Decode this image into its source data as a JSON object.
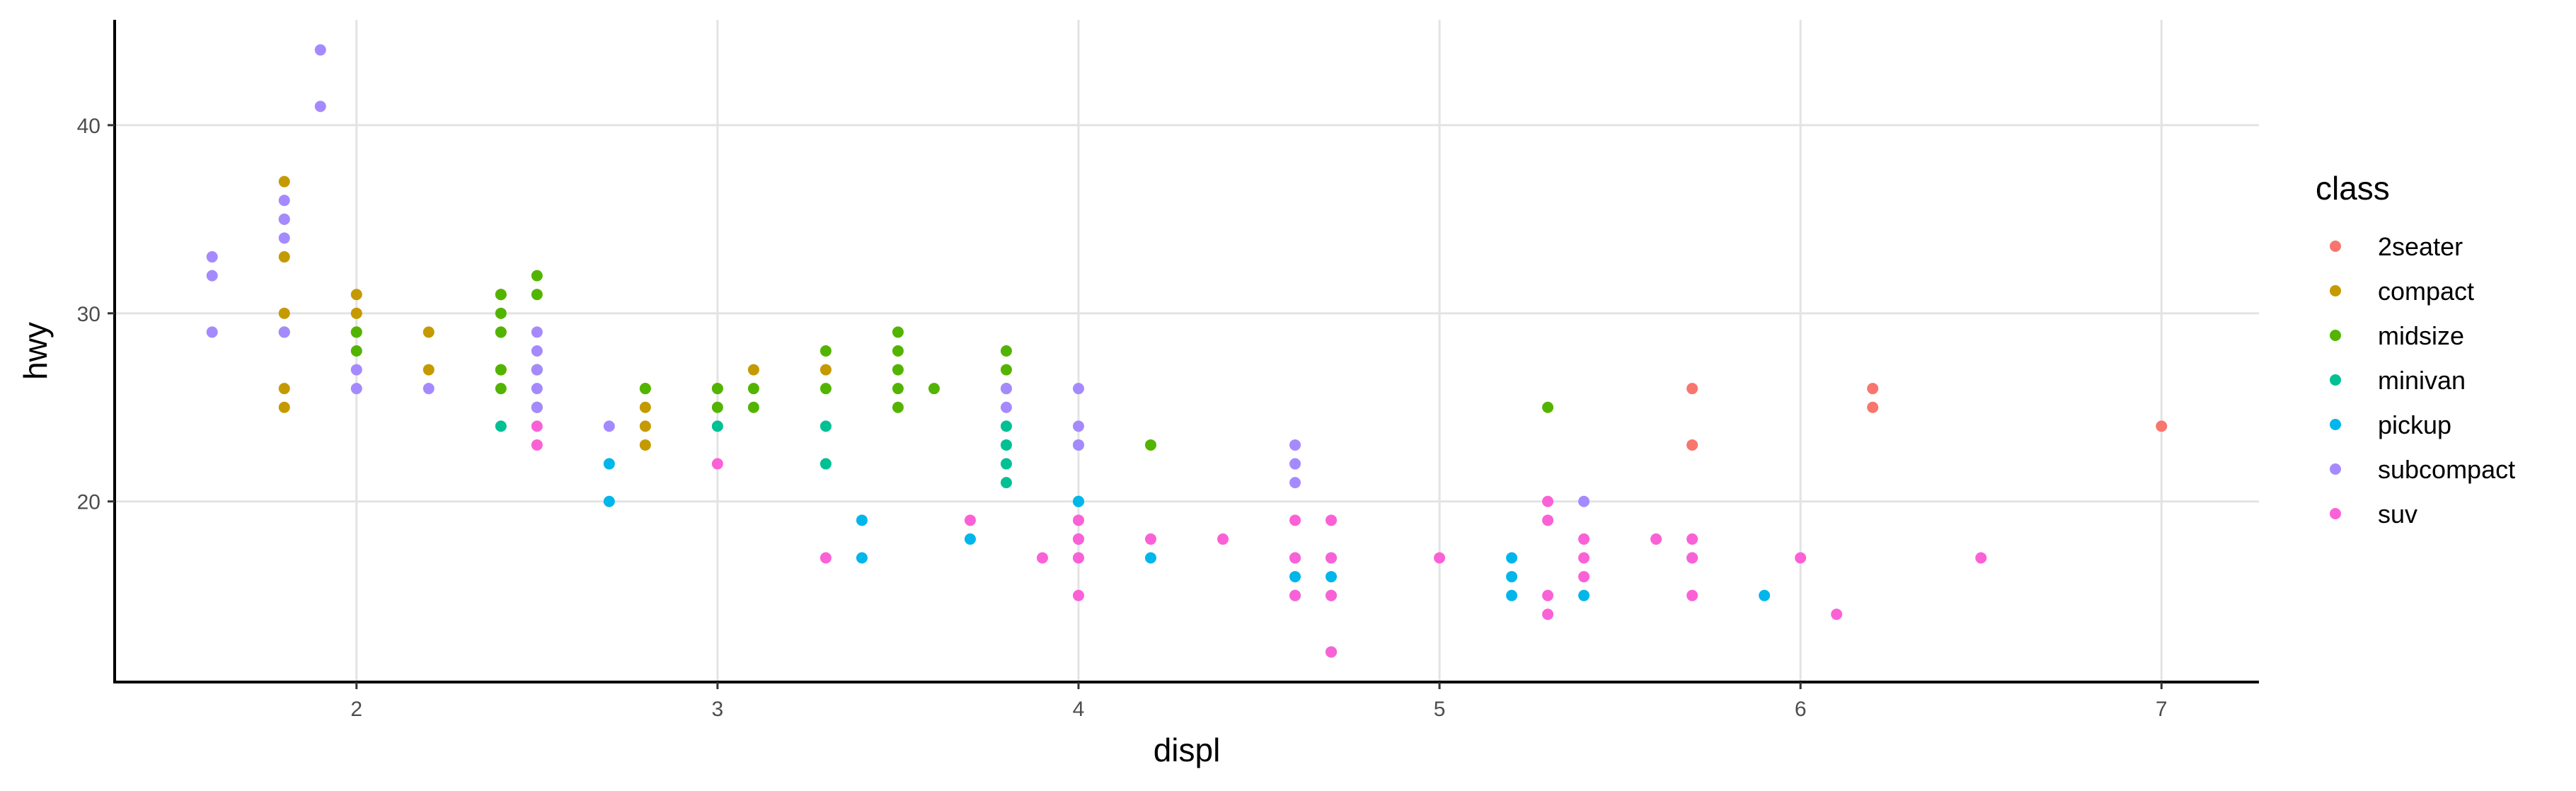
{
  "chart_data": {
    "type": "scatter",
    "xlabel": "displ",
    "ylabel": "hwy",
    "xlim": [
      1.33,
      7.27
    ],
    "ylim": [
      10.4,
      45.6
    ],
    "xticks": [
      2,
      3,
      4,
      5,
      6,
      7
    ],
    "yticks": [
      20,
      30,
      40
    ],
    "grid": true,
    "legend": {
      "title": "class",
      "position": "right"
    },
    "series": [
      {
        "name": "2seater",
        "color": "#F8766D",
        "points": [
          [
            5.7,
            26
          ],
          [
            5.7,
            23
          ],
          [
            6.2,
            26
          ],
          [
            6.2,
            25
          ],
          [
            7.0,
            24
          ]
        ]
      },
      {
        "name": "compact",
        "color": "#C49A00",
        "points": [
          [
            1.8,
            37
          ],
          [
            1.8,
            35
          ],
          [
            1.8,
            33
          ],
          [
            1.8,
            30
          ],
          [
            1.8,
            26
          ],
          [
            1.8,
            25
          ],
          [
            2.0,
            31
          ],
          [
            2.0,
            30
          ],
          [
            2.0,
            29
          ],
          [
            2.2,
            29
          ],
          [
            2.2,
            27
          ],
          [
            2.4,
            31
          ],
          [
            2.4,
            29
          ],
          [
            2.4,
            27
          ],
          [
            2.5,
            27
          ],
          [
            2.5,
            25
          ],
          [
            2.8,
            26
          ],
          [
            2.8,
            25
          ],
          [
            2.8,
            24
          ],
          [
            2.8,
            23
          ],
          [
            3.0,
            26
          ],
          [
            3.1,
            27
          ],
          [
            3.3,
            27
          ]
        ]
      },
      {
        "name": "midsize",
        "color": "#53B400",
        "points": [
          [
            1.8,
            29
          ],
          [
            2.0,
            29
          ],
          [
            2.0,
            28
          ],
          [
            2.4,
            31
          ],
          [
            2.4,
            30
          ],
          [
            2.4,
            29
          ],
          [
            2.4,
            27
          ],
          [
            2.4,
            26
          ],
          [
            2.5,
            32
          ],
          [
            2.5,
            31
          ],
          [
            2.5,
            27
          ],
          [
            2.5,
            25
          ],
          [
            2.8,
            26
          ],
          [
            3.0,
            26
          ],
          [
            3.0,
            25
          ],
          [
            3.1,
            26
          ],
          [
            3.1,
            25
          ],
          [
            3.3,
            28
          ],
          [
            3.3,
            26
          ],
          [
            3.5,
            29
          ],
          [
            3.5,
            28
          ],
          [
            3.5,
            27
          ],
          [
            3.5,
            26
          ],
          [
            3.5,
            25
          ],
          [
            3.6,
            26
          ],
          [
            3.8,
            28
          ],
          [
            3.8,
            27
          ],
          [
            3.8,
            26
          ],
          [
            4.2,
            23
          ],
          [
            5.3,
            25
          ]
        ]
      },
      {
        "name": "minivan",
        "color": "#00C094",
        "points": [
          [
            2.4,
            24
          ],
          [
            3.0,
            24
          ],
          [
            3.3,
            24
          ],
          [
            3.3,
            22
          ],
          [
            3.8,
            24
          ],
          [
            3.8,
            23
          ],
          [
            3.8,
            22
          ],
          [
            3.8,
            21
          ],
          [
            4.0,
            23
          ],
          [
            4.0,
            20
          ]
        ]
      },
      {
        "name": "pickup",
        "color": "#00B6EB",
        "points": [
          [
            2.7,
            22
          ],
          [
            2.7,
            20
          ],
          [
            3.4,
            19
          ],
          [
            3.4,
            17
          ],
          [
            3.7,
            18
          ],
          [
            4.0,
            20
          ],
          [
            4.0,
            18
          ],
          [
            4.0,
            17
          ],
          [
            4.2,
            17
          ],
          [
            4.6,
            17
          ],
          [
            4.6,
            16
          ],
          [
            4.6,
            15
          ],
          [
            4.7,
            17
          ],
          [
            4.7,
            16
          ],
          [
            4.7,
            15
          ],
          [
            4.7,
            12
          ],
          [
            5.2,
            17
          ],
          [
            5.2,
            16
          ],
          [
            5.2,
            15
          ],
          [
            5.4,
            15
          ],
          [
            5.7,
            17
          ],
          [
            5.9,
            15
          ]
        ]
      },
      {
        "name": "subcompact",
        "color": "#A58AFF",
        "points": [
          [
            1.6,
            33
          ],
          [
            1.6,
            32
          ],
          [
            1.6,
            29
          ],
          [
            1.8,
            36
          ],
          [
            1.8,
            35
          ],
          [
            1.8,
            34
          ],
          [
            1.8,
            29
          ],
          [
            1.9,
            44
          ],
          [
            1.9,
            41
          ],
          [
            2.0,
            27
          ],
          [
            2.0,
            26
          ],
          [
            2.2,
            26
          ],
          [
            2.5,
            29
          ],
          [
            2.5,
            28
          ],
          [
            2.5,
            27
          ],
          [
            2.5,
            26
          ],
          [
            2.5,
            25
          ],
          [
            2.7,
            24
          ],
          [
            3.8,
            26
          ],
          [
            3.8,
            25
          ],
          [
            4.0,
            26
          ],
          [
            4.0,
            24
          ],
          [
            4.0,
            23
          ],
          [
            4.6,
            23
          ],
          [
            4.6,
            22
          ],
          [
            4.6,
            21
          ],
          [
            5.4,
            20
          ]
        ]
      },
      {
        "name": "suv",
        "color": "#FB61D7",
        "points": [
          [
            2.5,
            24
          ],
          [
            2.5,
            23
          ],
          [
            3.0,
            22
          ],
          [
            3.3,
            17
          ],
          [
            3.7,
            19
          ],
          [
            3.9,
            17
          ],
          [
            4.0,
            19
          ],
          [
            4.0,
            18
          ],
          [
            4.0,
            17
          ],
          [
            4.0,
            15
          ],
          [
            4.2,
            18
          ],
          [
            4.4,
            18
          ],
          [
            4.6,
            19
          ],
          [
            4.6,
            17
          ],
          [
            4.6,
            15
          ],
          [
            4.7,
            19
          ],
          [
            4.7,
            17
          ],
          [
            4.7,
            15
          ],
          [
            4.7,
            12
          ],
          [
            5.0,
            17
          ],
          [
            5.3,
            20
          ],
          [
            5.3,
            19
          ],
          [
            5.3,
            15
          ],
          [
            5.3,
            14
          ],
          [
            5.4,
            18
          ],
          [
            5.4,
            17
          ],
          [
            5.4,
            16
          ],
          [
            5.6,
            18
          ],
          [
            5.7,
            18
          ],
          [
            5.7,
            17
          ],
          [
            5.7,
            15
          ],
          [
            6.0,
            17
          ],
          [
            6.1,
            14
          ],
          [
            6.5,
            17
          ]
        ]
      }
    ]
  }
}
